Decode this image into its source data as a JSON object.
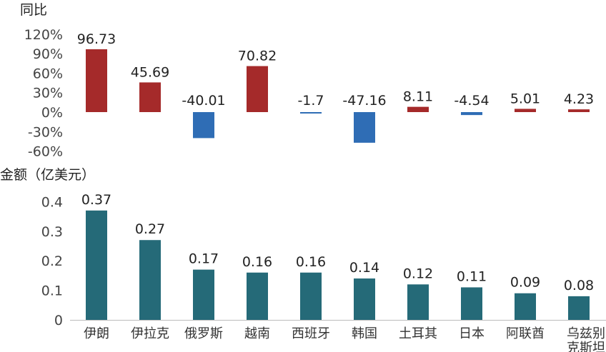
{
  "chart_data": [
    {
      "type": "bar",
      "ylabel": "同比",
      "categories": [
        "伊朗",
        "伊拉克",
        "俄罗斯",
        "越南",
        "西班牙",
        "韩国",
        "土耳其",
        "日本",
        "阿联酋",
        "乌兹别克斯坦"
      ],
      "values": [
        96.73,
        45.69,
        -40.01,
        70.82,
        -1.7,
        -47.16,
        8.11,
        -4.54,
        5.01,
        4.23
      ],
      "value_labels": [
        "96.73",
        "45.69",
        "-40.01",
        "70.82",
        "-1.7",
        "-47.16",
        "8.11",
        "-4.54",
        "5.01",
        "4.23"
      ],
      "ylim": [
        -60,
        120
      ],
      "yticks": [
        120,
        90,
        60,
        30,
        0,
        -30,
        -60
      ],
      "ytick_labels": [
        "120%",
        "90%",
        "60%",
        "30%",
        "0%",
        "-30%",
        "-60%"
      ],
      "colors": {
        "positive": "#a52a2a",
        "negative": "#2f6db5"
      },
      "grid": false,
      "legend": "none"
    },
    {
      "type": "bar",
      "ylabel": "金额（亿美元）",
      "categories": [
        "伊朗",
        "伊拉克",
        "俄罗斯",
        "越南",
        "西班牙",
        "韩国",
        "土耳其",
        "日本",
        "阿联酋",
        "乌兹别克斯坦"
      ],
      "category_lines": [
        [
          "伊朗"
        ],
        [
          "伊拉克"
        ],
        [
          "俄罗斯"
        ],
        [
          "越南"
        ],
        [
          "西班牙"
        ],
        [
          "韩国"
        ],
        [
          "土耳其"
        ],
        [
          "日本"
        ],
        [
          "阿联酋"
        ],
        [
          "乌兹别",
          "克斯坦"
        ]
      ],
      "values": [
        0.37,
        0.27,
        0.17,
        0.16,
        0.16,
        0.14,
        0.12,
        0.11,
        0.09,
        0.08
      ],
      "value_labels": [
        "0.37",
        "0.27",
        "0.17",
        "0.16",
        "0.16",
        "0.14",
        "0.12",
        "0.11",
        "0.09",
        "0.08"
      ],
      "ylim": [
        0,
        0.4
      ],
      "yticks": [
        0.4,
        0.3,
        0.2,
        0.1,
        0
      ],
      "ytick_labels": [
        "0.4",
        "0.3",
        "0.2",
        "0.1",
        "0"
      ],
      "colors": {
        "bar": "#256a78"
      },
      "grid": false,
      "legend": "none"
    }
  ]
}
